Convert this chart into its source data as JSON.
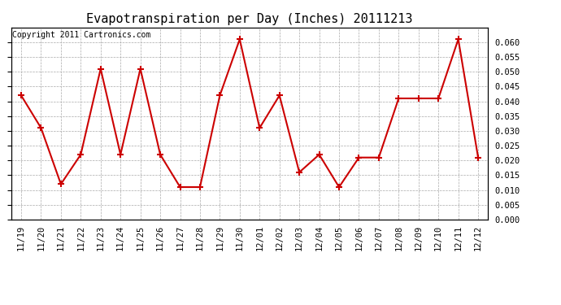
{
  "title": "Evapotranspiration per Day (Inches) 20111213",
  "copyright_text": "Copyright 2011 Cartronics.com",
  "dates": [
    "11/19",
    "11/20",
    "11/21",
    "11/22",
    "11/23",
    "11/24",
    "11/25",
    "11/26",
    "11/27",
    "11/28",
    "11/29",
    "11/30",
    "12/01",
    "12/02",
    "12/03",
    "12/04",
    "12/05",
    "12/06",
    "12/07",
    "12/08",
    "12/09",
    "12/10",
    "12/11",
    "12/12"
  ],
  "values": [
    0.042,
    0.031,
    0.012,
    0.022,
    0.051,
    0.022,
    0.051,
    0.022,
    0.011,
    0.011,
    0.042,
    0.061,
    0.031,
    0.042,
    0.016,
    0.022,
    0.011,
    0.021,
    0.021,
    0.041,
    0.041,
    0.041,
    0.061,
    0.021
  ],
  "line_color": "#cc0000",
  "marker": "+",
  "marker_size": 6,
  "marker_edge_width": 1.5,
  "line_width": 1.5,
  "ylim": [
    0.0,
    0.065
  ],
  "yticks": [
    0.0,
    0.005,
    0.01,
    0.015,
    0.02,
    0.025,
    0.03,
    0.035,
    0.04,
    0.045,
    0.05,
    0.055,
    0.06
  ],
  "background_color": "#ffffff",
  "grid_color": "#aaaaaa",
  "title_fontsize": 11,
  "copyright_fontsize": 7,
  "tick_fontsize": 7.5,
  "title_font": "monospace",
  "tick_font": "monospace"
}
